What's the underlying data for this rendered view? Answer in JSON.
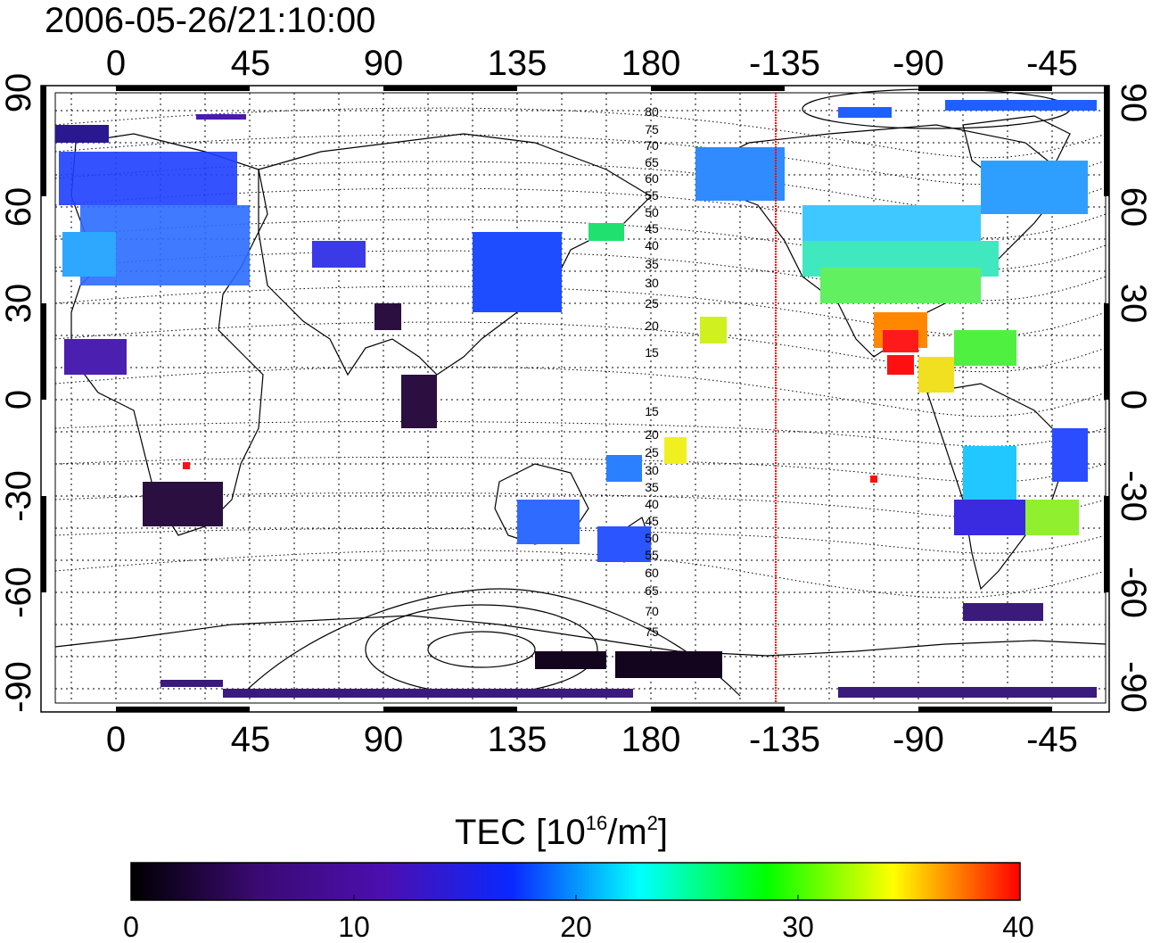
{
  "title": "2006-05-26/21:10:00",
  "map": {
    "x_tick_labels_top": [
      "0",
      "45",
      "90",
      "135",
      "180",
      "-135",
      "-90",
      "-45"
    ],
    "x_tick_labels_bottom": [
      "0",
      "45",
      "90",
      "135",
      "180",
      "-135",
      "-90",
      "-45"
    ],
    "y_tick_labels_left": [
      "90",
      "60",
      "30",
      "0",
      "-30",
      "-60",
      "-90"
    ],
    "y_tick_labels_right": [
      "90",
      "60",
      "30",
      "0",
      "-30",
      "-60",
      "-90"
    ],
    "contour_labels_north": [
      "80",
      "75",
      "70",
      "65",
      "60",
      "55",
      "50",
      "45",
      "40",
      "35",
      "30",
      "25",
      "20",
      "15"
    ],
    "contour_labels_south": [
      "15",
      "20",
      "25",
      "30",
      "35",
      "40",
      "45",
      "50",
      "55",
      "60",
      "65",
      "70",
      "75"
    ],
    "terminator_color": "#ff0000"
  },
  "colorbar": {
    "label_main": "TEC  [10",
    "label_sup1": "16",
    "label_mid": "/m",
    "label_sup2": "2",
    "label_end": "]",
    "tick_labels": [
      "0",
      "10",
      "20",
      "30",
      "40"
    ],
    "colormap": [
      "#000000",
      "#3b0a73",
      "#4b0fb0",
      "#0a28ff",
      "#00ffff",
      "#00ff00",
      "#ffff00",
      "#ff0000"
    ]
  }
}
